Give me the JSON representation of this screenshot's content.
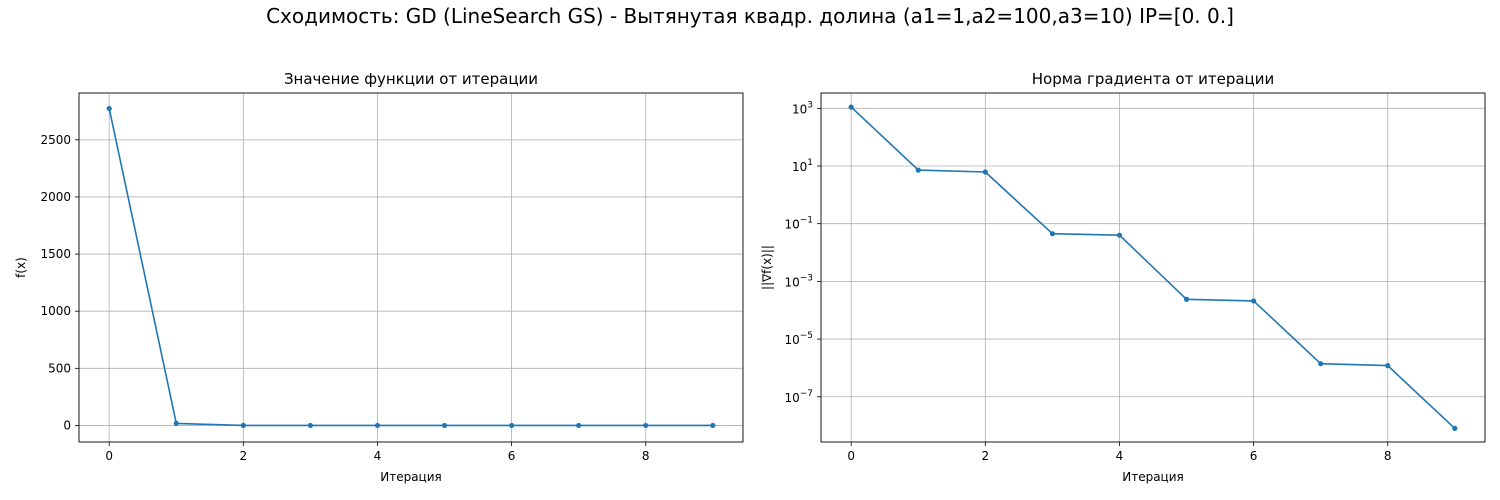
{
  "figure": {
    "suptitle": "Сходимость: GD (LineSearch GS) - Вытянутая квадр. долина (a1=1,a2=100,a3=10) IP=[0. 0.]"
  },
  "chart_data": [
    {
      "type": "line",
      "title": "Значение функции от итерации",
      "xlabel": "Итерация",
      "ylabel": "f(x)",
      "yscale": "linear",
      "grid": true,
      "color": "#1f77b4",
      "marker": "dot",
      "x": [
        0,
        1,
        2,
        3,
        4,
        5,
        6,
        7,
        8,
        9
      ],
      "y": [
        2775,
        18,
        0.5,
        0.05,
        0.01,
        0.001,
        0.0001,
        1e-05,
        1e-06,
        1e-07
      ],
      "xlim": [
        -0.45,
        9.45
      ],
      "ylim": [
        -145,
        2910
      ],
      "xticks": [
        0,
        2,
        4,
        6,
        8
      ],
      "xtick_labels": [
        "0",
        "2",
        "4",
        "6",
        "8"
      ],
      "yticks": [
        0,
        500,
        1000,
        1500,
        2000,
        2500
      ],
      "ytick_labels": [
        "0",
        "500",
        "1000",
        "1500",
        "2000",
        "2500"
      ]
    },
    {
      "type": "line",
      "title": "Норма градиента от итерации",
      "xlabel": "Итерация",
      "ylabel": "||∇f(x)||",
      "yscale": "log",
      "grid": true,
      "color": "#1f77b4",
      "marker": "dot",
      "x": [
        0,
        1,
        2,
        3,
        4,
        5,
        6,
        7,
        8,
        9
      ],
      "y": [
        1100,
        7.2,
        6.2,
        0.045,
        0.04,
        0.00024,
        0.00021,
        1.4e-06,
        1.2e-06,
        8e-09
      ],
      "xlim": [
        -0.45,
        9.45
      ],
      "ylim": [
        2.7e-09,
        3400
      ],
      "xticks": [
        0,
        2,
        4,
        6,
        8
      ],
      "xtick_labels": [
        "0",
        "2",
        "4",
        "6",
        "8"
      ],
      "yticks": [
        1000,
        10,
        0.1,
        0.001,
        1e-05,
        1e-07
      ],
      "ytick_labels": [
        {
          "base": "10",
          "exp": "3"
        },
        {
          "base": "10",
          "exp": "1"
        },
        {
          "base": "10",
          "exp": "−1"
        },
        {
          "base": "10",
          "exp": "−3"
        },
        {
          "base": "10",
          "exp": "−5"
        },
        {
          "base": "10",
          "exp": "−7"
        }
      ]
    }
  ]
}
